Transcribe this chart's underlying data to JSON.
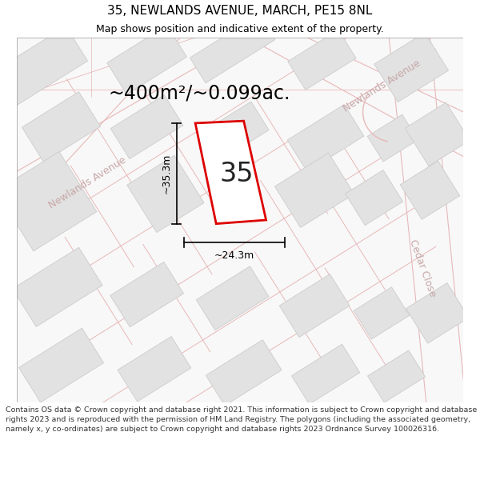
{
  "title": "35, NEWLANDS AVENUE, MARCH, PE15 8NL",
  "subtitle": "Map shows position and indicative extent of the property.",
  "area_text": "~400m²/~0.099ac.",
  "label_35": "35",
  "dim_width": "~24.3m",
  "dim_height": "~35.3m",
  "street_newlands_left": "Newlands Avenue",
  "street_newlands_right": "Newlands Avenue",
  "street_cedar": "Cedar Close",
  "footer": "Contains OS data © Crown copyright and database right 2021. This information is subject to Crown copyright and database rights 2023 and is reproduced with the permission of HM Land Registry. The polygons (including the associated geometry, namely x, y co-ordinates) are subject to Crown copyright and database rights 2023 Ordnance Survey 100026316.",
  "bg_color": "#ffffff",
  "map_bg": "#f7f7f7",
  "building_fill": "#e2e2e2",
  "building_stroke": "#cccccc",
  "road_fill": "#ffffff",
  "road_edge": "#e8b8b8",
  "property_stroke": "#dd0000",
  "property_fill": "#ffffff",
  "dim_line_color": "#000000",
  "title_color": "#000000",
  "street_label_color": "#c8a8a8",
  "area_text_color": "#000000",
  "footer_color": "#333333",
  "title_fontsize": 11,
  "subtitle_fontsize": 9,
  "area_fontsize": 17,
  "label_fontsize": 24,
  "street_fontsize": 9,
  "dim_fontsize": 9,
  "footer_fontsize": 6.8
}
